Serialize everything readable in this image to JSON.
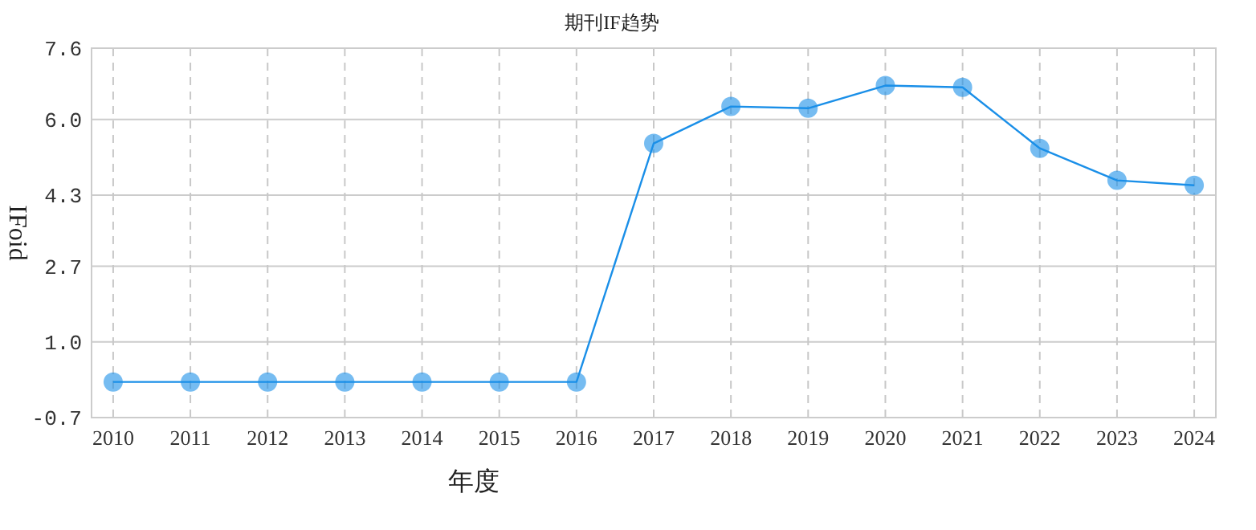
{
  "chart_data": {
    "type": "line",
    "title": "期刊IF趋势",
    "xlabel": "年度",
    "ylabel": "IFoid",
    "categories": [
      "2010",
      "2011",
      "2012",
      "2013",
      "2014",
      "2015",
      "2016",
      "2017",
      "2018",
      "2019",
      "2020",
      "2021",
      "2022",
      "2023",
      "2024"
    ],
    "series": [
      {
        "color": "#1a8fe8",
        "values": [
          0.1,
          0.1,
          0.1,
          0.1,
          0.1,
          0.1,
          0.1,
          5.46,
          6.29,
          6.25,
          6.76,
          6.72,
          5.35,
          4.63,
          4.52
        ]
      }
    ],
    "ylim": [
      -0.7,
      7.6
    ],
    "yticks": [
      -0.7,
      {
        "value": 1.0,
        "label": "1.0"
      },
      2.7,
      4.3,
      {
        "value": 6.0,
        "label": "6.0"
      },
      7.6
    ],
    "grid": true,
    "marker": "circle",
    "line_style": "solid"
  }
}
